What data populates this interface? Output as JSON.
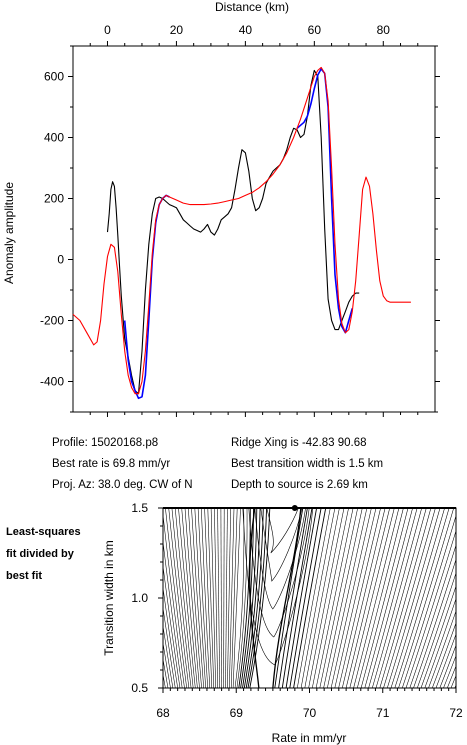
{
  "chart_data": [
    {
      "type": "line",
      "title": "",
      "xlabel": "Distance (km)",
      "ylabel": "Anomaly amplitude",
      "xlim": [
        -10,
        95
      ],
      "ylim": [
        -500,
        700
      ],
      "xticks": [
        "0",
        "20",
        "40",
        "60",
        "80"
      ],
      "yticks": [
        "600",
        "400",
        "200",
        "0",
        "-200",
        "-400"
      ],
      "grid": false,
      "series": [
        {
          "color": "#000000",
          "x": [
            0,
            0.5,
            1,
            1.5,
            2,
            2.5,
            3,
            3.5,
            4,
            5,
            6,
            7,
            8,
            9,
            10,
            11,
            12,
            13,
            14,
            15,
            16,
            17,
            18,
            19,
            20,
            21,
            22,
            23,
            24,
            25,
            26,
            27,
            28,
            29,
            30,
            31,
            32,
            33,
            34,
            35,
            36,
            37,
            38,
            39,
            40,
            41,
            42,
            43,
            44,
            45,
            46,
            47,
            48,
            49,
            50,
            51,
            52,
            53,
            54,
            55,
            56,
            57,
            58,
            59,
            60,
            61,
            62,
            63,
            64,
            65,
            66,
            67,
            68,
            69,
            70,
            71,
            72,
            73
          ],
          "y": [
            90,
            150,
            230,
            255,
            240,
            170,
            80,
            -20,
            -120,
            -260,
            -320,
            -380,
            -430,
            -440,
            -300,
            -100,
            50,
            150,
            200,
            205,
            200,
            190,
            180,
            175,
            170,
            150,
            130,
            120,
            110,
            100,
            95,
            90,
            100,
            115,
            90,
            80,
            100,
            130,
            140,
            150,
            170,
            230,
            300,
            360,
            350,
            290,
            200,
            160,
            170,
            200,
            250,
            270,
            290,
            300,
            310,
            330,
            360,
            400,
            430,
            425,
            400,
            410,
            470,
            570,
            620,
            600,
            400,
            100,
            -130,
            -200,
            -230,
            -230,
            -200,
            -170,
            -140,
            -120,
            -110,
            -110
          ]
        },
        {
          "color": "#0000ff",
          "x": [
            5,
            6,
            7,
            8,
            9,
            10,
            11,
            12,
            13,
            14,
            15,
            16,
            17,
            18,
            55,
            56,
            57,
            58,
            59,
            60,
            61,
            62,
            63,
            64,
            65,
            66,
            67,
            68,
            69,
            70,
            71
          ],
          "y": [
            -200,
            -330,
            -400,
            -430,
            -455,
            -450,
            -380,
            -200,
            0,
            120,
            180,
            200,
            210,
            205,
            430,
            440,
            450,
            470,
            510,
            560,
            605,
            625,
            610,
            500,
            200,
            -50,
            -160,
            -220,
            -240,
            -200,
            -160
          ]
        },
        {
          "color": "#ff0000",
          "x": [
            -10,
            -8,
            -6,
            -4,
            -3,
            -2,
            -1,
            0,
            1,
            2,
            3,
            4,
            5,
            6,
            7,
            8,
            9,
            10,
            11,
            12,
            13,
            14,
            15,
            16,
            17,
            18,
            20,
            22,
            24,
            26,
            28,
            30,
            32,
            34,
            36,
            38,
            40,
            42,
            44,
            46,
            48,
            50,
            52,
            54,
            56,
            58,
            60,
            61,
            62,
            63,
            64,
            65,
            66,
            67,
            68,
            69,
            70,
            71,
            72,
            73,
            74,
            75,
            76,
            77,
            78,
            79,
            80,
            81,
            82,
            84,
            86,
            88
          ],
          "y": [
            -180,
            -200,
            -240,
            -280,
            -270,
            -200,
            -80,
            10,
            50,
            40,
            -40,
            -180,
            -300,
            -380,
            -420,
            -440,
            -440,
            -400,
            -300,
            -150,
            20,
            130,
            180,
            200,
            210,
            205,
            195,
            185,
            180,
            180,
            180,
            182,
            185,
            190,
            195,
            200,
            210,
            220,
            235,
            255,
            280,
            310,
            350,
            400,
            460,
            530,
            600,
            620,
            630,
            610,
            520,
            300,
            50,
            -130,
            -210,
            -240,
            -230,
            -170,
            -70,
            80,
            230,
            270,
            240,
            150,
            30,
            -70,
            -120,
            -135,
            -140,
            -140,
            -140,
            -140
          ]
        }
      ]
    },
    {
      "type": "contour",
      "title": "",
      "xlabel": "Rate in mm/yr",
      "ylabel": "Transition width in km",
      "xlim": [
        68,
        72
      ],
      "ylim": [
        0.5,
        1.5
      ],
      "xticks": [
        "68",
        "69",
        "70",
        "71",
        "72"
      ],
      "yticks": [
        "1.5",
        "1.0",
        "0.5"
      ],
      "best_fit": {
        "rate": 69.8,
        "width": 1.5
      }
    }
  ],
  "info": {
    "profile": "Profile: 15020168.p8",
    "best_rate": "Best rate is 69.8 mm/yr",
    "proj_az": "Proj. Az: 38.0 deg. CW of N",
    "ridge_xing": "Ridge Xing is -42.83 90.68",
    "best_width": "Best transition width is 1.5 km",
    "depth": "Depth to source is   2.69 km"
  },
  "side_label": [
    "Least-squares",
    "fit divided by",
    "best fit"
  ]
}
